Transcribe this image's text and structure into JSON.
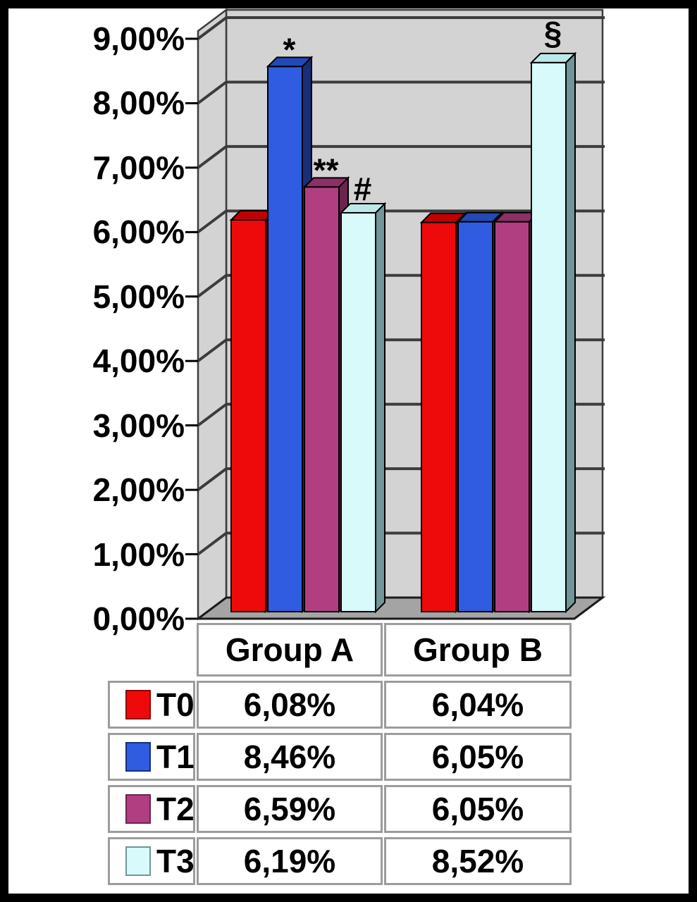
{
  "chart_data": {
    "type": "bar",
    "projection": "3d",
    "title": "",
    "categories": [
      "Group A",
      "Group B"
    ],
    "series": [
      {
        "name": "T0",
        "values": [
          6.08,
          6.04
        ],
        "labels": [
          "6,08%",
          "6,04%"
        ]
      },
      {
        "name": "T1",
        "values": [
          8.46,
          6.05
        ],
        "labels": [
          "8,46%",
          "6,05%"
        ]
      },
      {
        "name": "T2",
        "values": [
          6.59,
          6.05
        ],
        "labels": [
          "6,59%",
          "6,05%"
        ]
      },
      {
        "name": "T3",
        "values": [
          6.19,
          8.52
        ],
        "labels": [
          "6,19%",
          "8,52%"
        ]
      }
    ],
    "ylim": [
      0,
      9
    ],
    "ytick_step": 1,
    "ytick_labels": [
      "0,00%",
      "1,00%",
      "2,00%",
      "3,00%",
      "4,00%",
      "5,00%",
      "6,00%",
      "7,00%",
      "8,00%",
      "9,00%"
    ],
    "grid": true,
    "legend_position": "table-rows-left",
    "annotations": [
      {
        "text": "*",
        "category": "Group A",
        "series": "T1"
      },
      {
        "text": "**",
        "category": "Group A",
        "series": "T2"
      },
      {
        "text": "#",
        "category": "Group A",
        "series": "T3"
      },
      {
        "text": "§",
        "category": "Group B",
        "series": "T3"
      }
    ]
  },
  "colors": {
    "background": "#ffffff",
    "frame": "#000000",
    "wall": "#d3d3d3",
    "floor": "#a4a4a4",
    "gridline": "#3c3c3c",
    "axis_text": "#000000",
    "table_border": "#9c9c9c",
    "series_faces": {
      "T0": {
        "front": "#ee0a0a",
        "top": "#c00000",
        "side": "#8f0000"
      },
      "T1": {
        "front": "#2f5ce0",
        "top": "#2349b5",
        "side": "#182e78"
      },
      "T2": {
        "front": "#b23e82",
        "top": "#8c3066",
        "side": "#6b244e"
      },
      "T3": {
        "front": "#d8fafa",
        "top": "#bce8ea",
        "side": "#719598"
      }
    }
  },
  "table": {
    "corner_label": "",
    "column_headers": [
      "Group A",
      "Group B"
    ],
    "rows": [
      {
        "legend": "T0",
        "cells": [
          "6,08%",
          "6,04%"
        ]
      },
      {
        "legend": "T1",
        "cells": [
          "8,46%",
          "6,05%"
        ]
      },
      {
        "legend": "T2",
        "cells": [
          "6,59%",
          "6,05%"
        ]
      },
      {
        "legend": "T3",
        "cells": [
          "6,19%",
          "8,52%"
        ]
      }
    ]
  }
}
